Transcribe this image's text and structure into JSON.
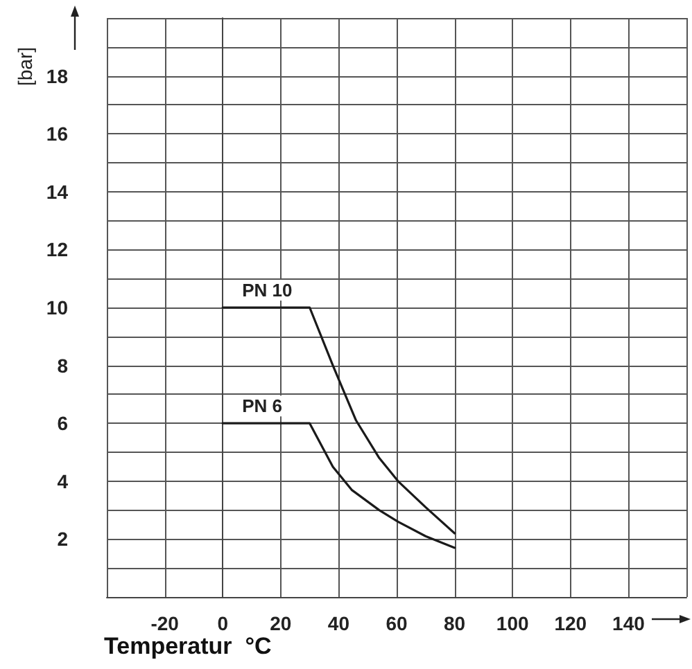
{
  "chart_data": {
    "type": "line",
    "xlabel": "Temperatur  °C",
    "ylabel": "[bar]",
    "xlim": [
      -40,
      160
    ],
    "xticks": [
      {
        "value": -40,
        "label": null
      },
      -20,
      0,
      20,
      40,
      60,
      80,
      100,
      120,
      140,
      {
        "value": 160,
        "label": null
      }
    ],
    "ylim": [
      0,
      20
    ],
    "yticks": [
      {
        "value": 0,
        "label": null
      },
      {
        "value": 1,
        "label": null
      },
      2,
      {
        "value": 3,
        "label": null
      },
      4,
      {
        "value": 5,
        "label": null
      },
      6,
      {
        "value": 7,
        "label": null
      },
      8,
      {
        "value": 9,
        "label": null
      },
      10,
      {
        "value": 11,
        "label": null
      },
      12,
      {
        "value": 13,
        "label": null
      },
      14,
      {
        "value": 15,
        "label": null
      },
      16,
      {
        "value": 17,
        "label": null
      },
      18,
      {
        "value": 19,
        "label": null
      },
      {
        "value": 20,
        "label": null
      }
    ],
    "grid": true,
    "legend": false,
    "marker": "none",
    "line_style": "solid",
    "series": [
      {
        "name": "PN 10",
        "color": "#1a1a1a",
        "x": [
          0,
          30,
          38,
          46,
          54,
          60.5,
          70,
          80
        ],
        "values": [
          10,
          10,
          8.0,
          6.1,
          4.8,
          4.0,
          3.1,
          2.2
        ]
      },
      {
        "name": "PN 6",
        "color": "#1a1a1a",
        "x": [
          0,
          30,
          38,
          44.5,
          54,
          60.5,
          70,
          80
        ],
        "values": [
          6,
          6,
          4.5,
          3.7,
          3.0,
          2.6,
          2.1,
          1.7
        ]
      }
    ]
  }
}
